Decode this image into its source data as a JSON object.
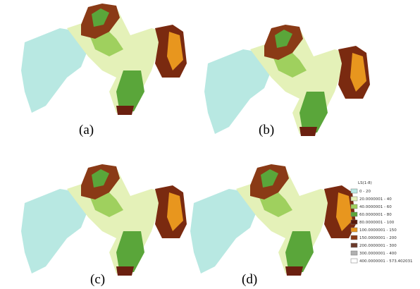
{
  "panels": [
    {
      "label": "(a)"
    },
    {
      "label": "(b)"
    },
    {
      "label": "(c)"
    },
    {
      "label": "(d)"
    }
  ],
  "legend": {
    "title": "LS(1-8)",
    "items": [
      {
        "label": "0 - 20",
        "color": "#b8e8e2"
      },
      {
        "label": "20.0000001 - 40",
        "color": "#e4f1b8"
      },
      {
        "label": "40.0000001 - 60",
        "color": "#9fd05e"
      },
      {
        "label": "60.0000001 - 80",
        "color": "#5aa63a"
      },
      {
        "label": "80.0000001 - 100",
        "color": "#5a1a0c"
      },
      {
        "label": "100.0000001 - 150",
        "color": "#e8961e"
      },
      {
        "label": "150.0000001 - 200",
        "color": "#8a3a16"
      },
      {
        "label": "200.0000001 - 300",
        "color": "#6b3a2a"
      },
      {
        "label": "300.0000001 - 400",
        "color": "#b0b0b0"
      },
      {
        "label": "400.0000001 - 573.402031",
        "color": "#ffffff"
      }
    ]
  }
}
